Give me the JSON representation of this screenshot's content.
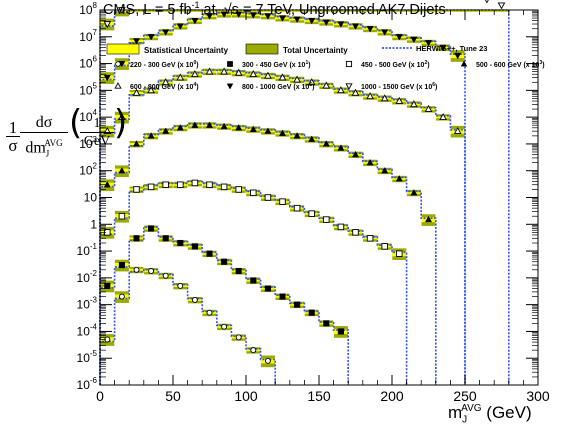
{
  "title": {
    "prefix": "CMS, L = 5 fb",
    "sup": "-1",
    "mid": " at  ",
    "sqrt": "√s",
    "suffix": " = 7 TeV, Ungroomed AK7 Dijets"
  },
  "legend": {
    "stat": "Statistical Uncertainty",
    "total": "Total Uncertainty",
    "mc": "HERWIG++, Tune 23",
    "markers": [
      {
        "label": "220 - 300 GeV (x 10",
        "exp": "0",
        "marker": "open-circle"
      },
      {
        "label": "300 - 450 GeV (x 10",
        "exp": "1",
        "marker": "filled-square"
      },
      {
        "label": "450 - 500 GeV (x 10",
        "exp": "2",
        "marker": "open-square"
      },
      {
        "label": "500 - 600 GeV (x 10",
        "exp": "3",
        "marker": "filled-triangle-up"
      },
      {
        "label": "600 - 800 GeV (x 10",
        "exp": "4",
        "marker": "open-triangle-up"
      },
      {
        "label": "800 - 1000 GeV (x 10",
        "exp": "5",
        "marker": "filled-triangle-down"
      },
      {
        "label": "1000 - 1500 GeV (x 10",
        "exp": "6",
        "marker": "open-triangle-down"
      }
    ]
  },
  "ylabel": {
    "one": "1",
    "sigma": "σ",
    "dsigma": "dσ",
    "dm": "dm",
    "sub": "J",
    "sup": "AVG",
    "unit_num": "1",
    "unit_den": "GeV"
  },
  "xlabel": {
    "m": "m",
    "sub": "J",
    "sup": "AVG",
    "unit": " (GeV)"
  },
  "colors": {
    "stat": "#ffff00",
    "total": "#9aaa00",
    "mc": "#3355ee",
    "axis": "#000000"
  },
  "chart_data": {
    "type": "scatter",
    "xlim": [
      0,
      300
    ],
    "ylim": [
      1e-06,
      100000000.0
    ],
    "yscale": "log",
    "xticks": [
      0,
      50,
      100,
      150,
      200,
      250,
      300
    ],
    "yticks": [
      "10^-6",
      "10^-5",
      "10^-4",
      "10^-3",
      "10^-2",
      "10^-1",
      "1",
      "10",
      "10^2",
      "10^3",
      "10^4",
      "10^5",
      "10^6",
      "10^7",
      "10^8"
    ],
    "grid": false,
    "legend_position": "top",
    "series": [
      {
        "name": "220 - 300 GeV",
        "scale": 1,
        "marker": "open-circle",
        "mc_end": 120,
        "x": [
          5,
          15,
          25,
          35,
          45,
          55,
          65,
          75,
          85,
          95,
          105,
          115
        ],
        "y": [
          5e-05,
          0.002,
          0.02,
          0.018,
          0.012,
          0.005,
          0.0015,
          0.0005,
          0.00015,
          6e-05,
          2e-05,
          8e-06
        ]
      },
      {
        "name": "300 - 450 GeV",
        "scale": 10,
        "marker": "filled-square",
        "mc_end": 170,
        "x": [
          5,
          15,
          25,
          35,
          45,
          55,
          65,
          75,
          85,
          95,
          105,
          115,
          125,
          135,
          145,
          155,
          165
        ],
        "y": [
          0.0005,
          0.003,
          0.03,
          0.07,
          0.03,
          0.02,
          0.015,
          0.008,
          0.004,
          0.0018,
          0.0008,
          0.0004,
          0.0002,
          0.0001,
          5e-05,
          2e-05,
          1e-05
        ]
      },
      {
        "name": "450 - 500 GeV",
        "scale": 100,
        "marker": "open-square",
        "mc_end": 210,
        "x": [
          5,
          15,
          25,
          35,
          45,
          55,
          65,
          75,
          85,
          95,
          105,
          115,
          125,
          135,
          145,
          155,
          165,
          175,
          185,
          195,
          205
        ],
        "y": [
          0.005,
          0.02,
          0.2,
          0.25,
          0.3,
          0.3,
          0.35,
          0.3,
          0.25,
          0.2,
          0.15,
          0.1,
          0.07,
          0.04,
          0.025,
          0.015,
          0.008,
          0.005,
          0.003,
          0.0015,
          0.0008
        ]
      },
      {
        "name": "500 - 600 GeV",
        "scale": 1000,
        "marker": "filled-triangle-up",
        "mc_end": 230,
        "x": [
          5,
          15,
          25,
          35,
          45,
          55,
          65,
          75,
          85,
          95,
          105,
          115,
          125,
          135,
          145,
          155,
          165,
          175,
          185,
          195,
          205,
          215,
          225
        ],
        "y": [
          0.03,
          0.1,
          1,
          2,
          3,
          4,
          5,
          5,
          4.5,
          4,
          3.5,
          3,
          2.5,
          2,
          1.5,
          1,
          0.7,
          0.4,
          0.2,
          0.1,
          0.05,
          0.015,
          0.0015
        ]
      },
      {
        "name": "600 - 800 GeV",
        "scale": 10000,
        "marker": "open-triangle-up",
        "mc_end": 250,
        "x": [
          5,
          15,
          25,
          35,
          45,
          55,
          65,
          75,
          85,
          95,
          105,
          115,
          125,
          135,
          145,
          155,
          165,
          175,
          185,
          195,
          205,
          215,
          225,
          235,
          245
        ],
        "y": [
          0.3,
          1,
          8,
          10,
          20,
          30,
          40,
          50,
          50,
          45,
          40,
          35,
          30,
          25,
          20,
          15,
          10,
          8,
          6,
          5,
          4,
          3,
          2,
          1,
          0.3
        ]
      },
      {
        "name": "800 - 1000 GeV",
        "scale": 100000,
        "marker": "filled-triangle-down",
        "mc_end": 250,
        "x": [
          5,
          15,
          25,
          35,
          45,
          55,
          65,
          75,
          85,
          95,
          105,
          115,
          125,
          135,
          145,
          155,
          165,
          175,
          185,
          195,
          205,
          215,
          225,
          235,
          245
        ],
        "y": [
          3,
          10,
          70,
          100,
          150,
          250,
          400,
          600,
          700,
          700,
          650,
          600,
          500,
          450,
          400,
          350,
          300,
          250,
          200,
          150,
          100,
          80,
          60,
          40,
          20
        ]
      },
      {
        "name": "1000 - 1500 GeV",
        "scale": 1000000,
        "marker": "open-triangle-down",
        "mc_end": 280,
        "x": [
          5,
          15,
          25,
          35,
          45,
          55,
          65,
          75,
          85,
          95,
          105,
          115,
          125,
          135,
          145,
          155,
          165,
          175,
          185,
          195,
          205,
          215,
          225,
          235,
          245,
          255,
          265,
          275
        ],
        "y": [
          30,
          100,
          700,
          1000,
          1500,
          2500,
          4000,
          6000,
          8000,
          9000,
          8500,
          8000,
          7000,
          6000,
          5000,
          4500,
          4000,
          3500,
          3000,
          2500,
          2000,
          1500,
          1000,
          700,
          500,
          350,
          250,
          150
        ]
      }
    ]
  }
}
